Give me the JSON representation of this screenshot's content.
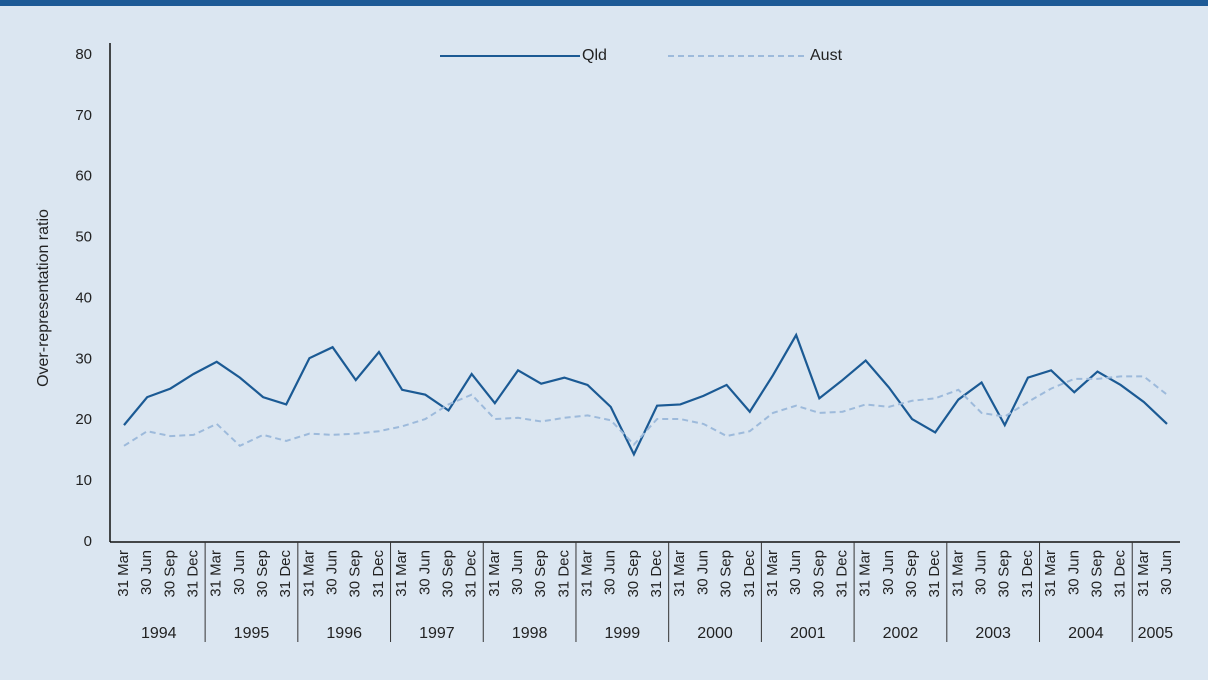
{
  "chart_data": {
    "type": "line",
    "ylabel": "Over-representation ratio",
    "categories": [
      "31 Mar",
      "30 Jun",
      "30 Sep",
      "31 Dec",
      "31 Mar",
      "30 Jun",
      "30 Sep",
      "31 Dec",
      "31 Mar",
      "30 Jun",
      "30 Sep",
      "31 Dec",
      "31 Mar",
      "30 Jun",
      "30 Sep",
      "31 Dec",
      "31 Mar",
      "30 Jun",
      "30 Sep",
      "31 Dec",
      "31 Mar",
      "30 Jun",
      "30 Sep",
      "31 Dec",
      "31 Mar",
      "30 Jun",
      "30 Sep",
      "31 Dec",
      "31 Mar",
      "30 Jun",
      "30 Sep",
      "31 Dec",
      "31 Mar",
      "30 Jun",
      "30 Sep",
      "31 Dec",
      "31 Mar",
      "30 Jun",
      "30 Sep",
      "31 Dec",
      "31 Mar",
      "30 Jun",
      "30 Sep",
      "31 Dec",
      "31 Mar",
      "30 Jun"
    ],
    "years": [
      "1994",
      "1995",
      "1996",
      "1997",
      "1998",
      "1999",
      "2000",
      "2001",
      "2002",
      "2003",
      "2004",
      "2005"
    ],
    "series": [
      {
        "name": "Qld",
        "color": "#1b5a94",
        "dash": false,
        "values": [
          19.2,
          23.8,
          25.2,
          27.6,
          29.6,
          27.0,
          23.8,
          22.6,
          30.2,
          32.0,
          26.6,
          31.2,
          25.0,
          24.2,
          21.6,
          27.6,
          22.8,
          28.2,
          26.0,
          27.0,
          25.8,
          22.2,
          14.4,
          22.4,
          22.6,
          24.0,
          25.8,
          21.4,
          27.4,
          34.0,
          23.6,
          26.6,
          29.8,
          25.4,
          20.2,
          18.0,
          23.4,
          26.2,
          19.2,
          27.0,
          28.2,
          24.6,
          28.0,
          25.8,
          23.0,
          19.4
        ]
      },
      {
        "name": "Aust",
        "color": "#9dbadb",
        "dash": true,
        "values": [
          15.8,
          18.2,
          17.4,
          17.6,
          19.4,
          15.8,
          17.6,
          16.6,
          17.8,
          17.6,
          17.8,
          18.2,
          19.0,
          20.2,
          22.6,
          24.2,
          20.2,
          20.4,
          19.8,
          20.4,
          20.8,
          20.0,
          16.0,
          20.2,
          20.2,
          19.4,
          17.4,
          18.2,
          21.2,
          22.4,
          21.2,
          21.4,
          22.6,
          22.2,
          23.2,
          23.6,
          25.0,
          21.2,
          20.6,
          23.0,
          25.2,
          26.8,
          26.8,
          27.2,
          27.2,
          24.2
        ]
      }
    ],
    "ylim": [
      0,
      80
    ],
    "yticks": [
      0,
      10,
      20,
      30,
      40,
      50,
      60,
      70,
      80
    ],
    "grid": false,
    "legend": "top"
  }
}
